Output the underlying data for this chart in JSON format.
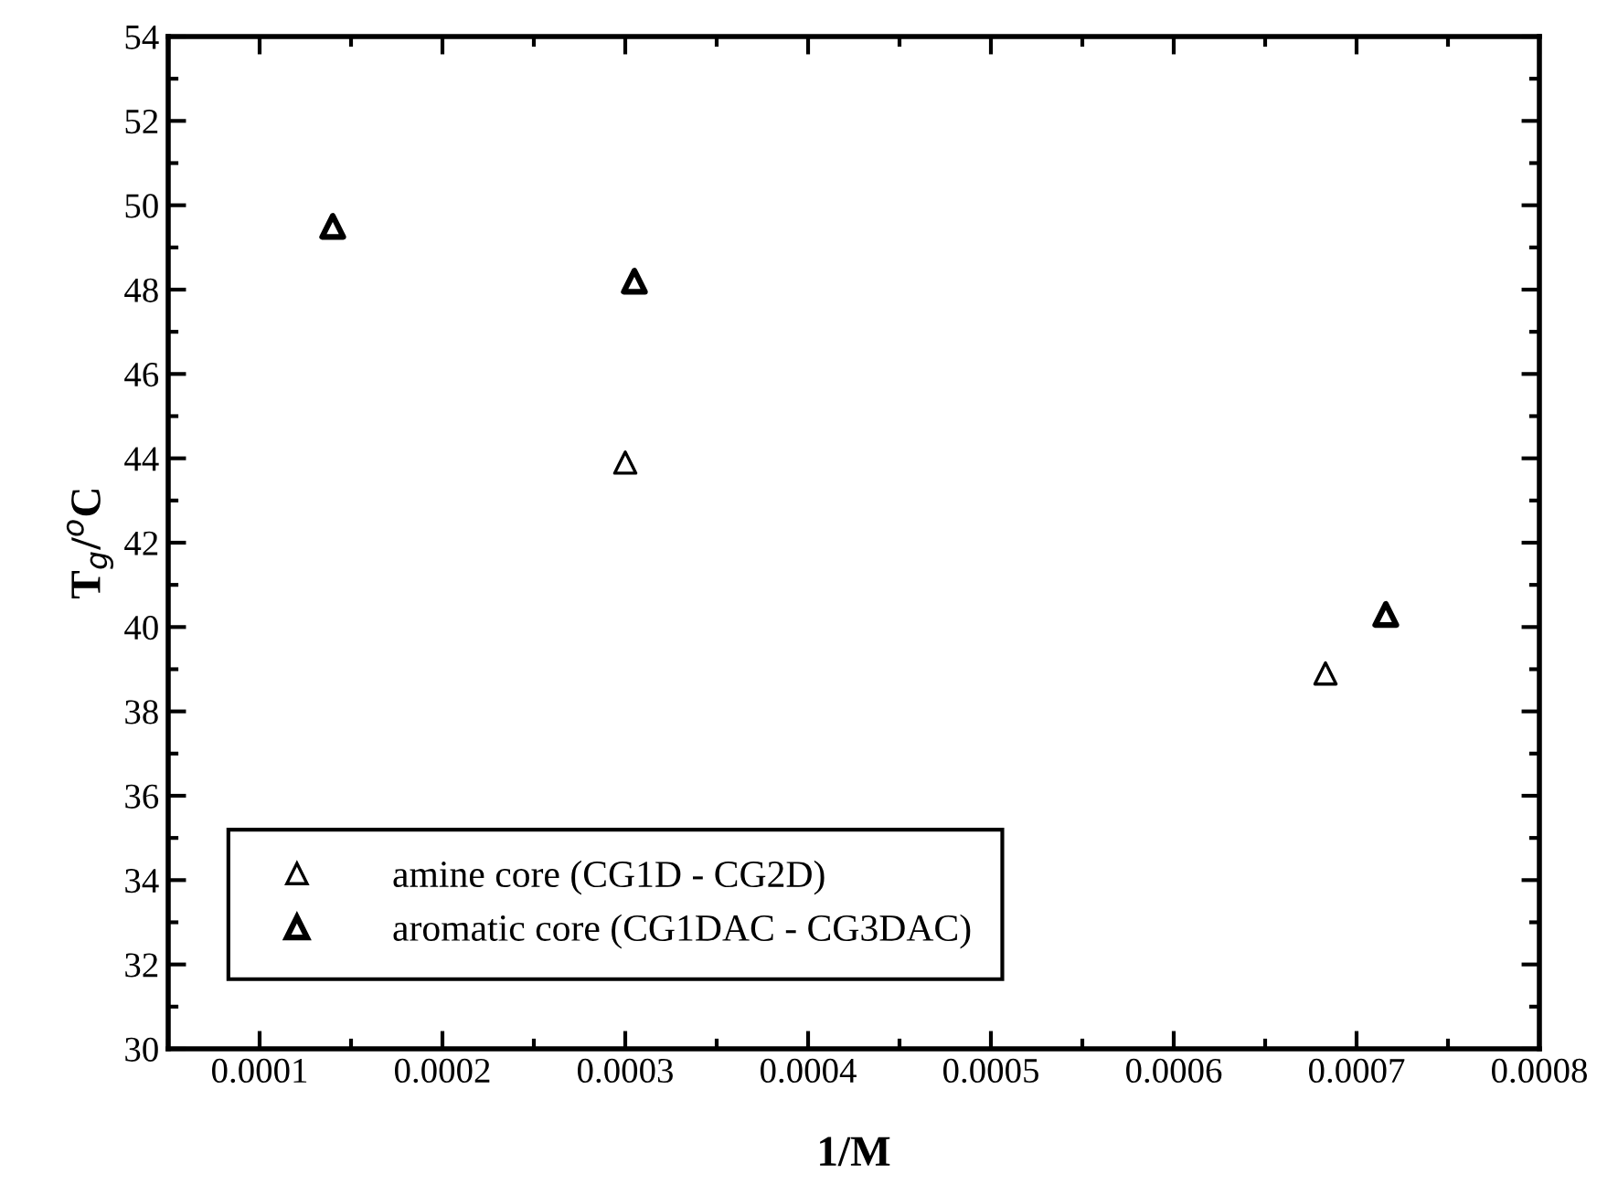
{
  "chart_data": {
    "type": "scatter",
    "xlabel": "1/M",
    "ylabel": "T$_{g}$/$^{o}$C",
    "series": [
      {
        "name": "amine core (CG1D - CG2D)",
        "color": "#000000",
        "x": [
          0.0003,
          0.000683
        ],
        "values": [
          43.9,
          38.9
        ]
      },
      {
        "name": "aromatic core (CG1DAC - CG3DAC)",
        "color": "#000000",
        "x": [
          0.00014,
          0.000305,
          0.000716
        ],
        "values": [
          49.5,
          48.2,
          40.3
        ]
      }
    ],
    "marker": "triangle",
    "legend": "bottom left",
    "grid": false,
    "xlim": [
      5e-05,
      0.0008
    ],
    "xticks": [
      0.0001,
      0.0002,
      0.0003,
      0.0004,
      0.0005,
      0.0006,
      0.0007,
      0.0008
    ],
    "ylim": [
      30,
      54
    ],
    "yticks": [
      30,
      32,
      34,
      36,
      38,
      40,
      42,
      44,
      46,
      48,
      50,
      52,
      54
    ]
  }
}
